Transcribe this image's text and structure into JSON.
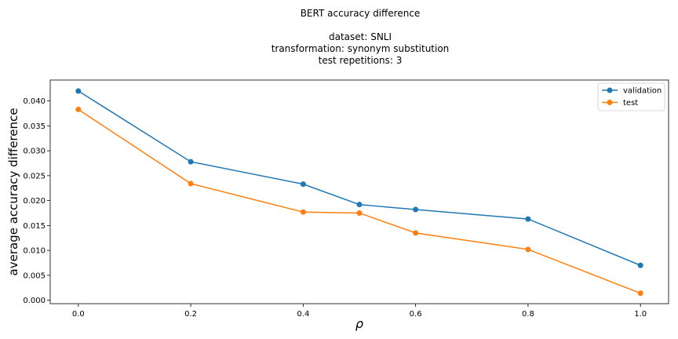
{
  "colors": {
    "validation": "#1f77b4",
    "test": "#ff7f0e",
    "axis": "#000000",
    "legend_border": "#cccccc"
  },
  "chart_data": {
    "type": "line",
    "title_lines": [
      "BERT accuracy difference",
      "",
      "dataset: SNLI",
      "transformation: synonym substitution",
      "test repetitions: 3"
    ],
    "xlabel": "ρ",
    "ylabel": "average accuracy difference",
    "xlim": [
      -0.05,
      1.05
    ],
    "ylim": [
      -0.0007,
      0.0442
    ],
    "xticks": [
      0.0,
      0.2,
      0.4,
      0.6,
      0.8,
      1.0
    ],
    "xtick_labels": [
      "0.0",
      "0.2",
      "0.4",
      "0.6",
      "0.8",
      "1.0"
    ],
    "yticks": [
      0.0,
      0.005,
      0.01,
      0.015,
      0.02,
      0.025,
      0.03,
      0.035,
      0.04
    ],
    "ytick_labels": [
      "0.000",
      "0.005",
      "0.010",
      "0.015",
      "0.020",
      "0.025",
      "0.030",
      "0.035",
      "0.040"
    ],
    "grid": false,
    "legend_position": "top-right",
    "x": [
      0.0,
      0.2,
      0.4,
      0.5,
      0.6,
      0.8,
      1.0
    ],
    "series": [
      {
        "name": "validation",
        "values": [
          0.042,
          0.0278,
          0.0233,
          0.0192,
          0.0182,
          0.0163,
          0.007
        ]
      },
      {
        "name": "test",
        "values": [
          0.0383,
          0.0234,
          0.0177,
          0.0175,
          0.0135,
          0.0102,
          0.0014
        ]
      }
    ]
  }
}
